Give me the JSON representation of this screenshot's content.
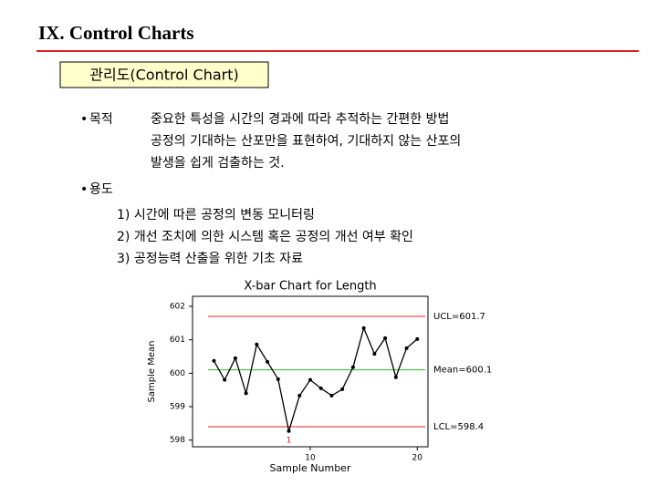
{
  "header": {
    "title": "IX. Control Charts"
  },
  "box_heading": "관리도(Control Chart)",
  "purpose": {
    "label": "목적",
    "lines": [
      "중요한 특성을 시간의 경과에 따라 추적하는 간편한 방법",
      "공정의 기대하는 산포만을 표현하여, 기대하지 않는 산포의",
      "발생을 쉽게 검출하는 것."
    ]
  },
  "usage": {
    "label": "용도",
    "items": [
      "1) 시간에 따른 공정의 변동 모니터링",
      "2) 개선 조치에 의한 시스템 혹은 공정의 개선 여부 확인",
      "3) 공정능력 산출을 위한 기초 자료"
    ]
  },
  "chart_data": {
    "type": "line",
    "title": "X-bar Chart for Length",
    "xlabel": "Sample Number",
    "ylabel": "Sample Mean",
    "x": [
      1,
      2,
      3,
      4,
      5,
      6,
      7,
      8,
      9,
      10,
      11,
      12,
      13,
      14,
      15,
      16,
      17,
      18,
      19,
      20
    ],
    "values": [
      600.37,
      599.8,
      600.45,
      599.4,
      600.86,
      600.34,
      599.82,
      598.27,
      599.33,
      599.8,
      599.55,
      599.33,
      599.52,
      600.18,
      601.35,
      600.58,
      601.05,
      599.88,
      600.75,
      601.02
    ],
    "color": "#000000",
    "xlim": [
      -1,
      21
    ],
    "ylim": [
      597.8,
      602.3
    ],
    "xticks": [
      10,
      20
    ],
    "yticks": [
      598,
      599,
      600,
      601,
      602
    ],
    "control_lines": [
      {
        "value": 601.7,
        "label": "UCL=601.7",
        "color": "#e02020"
      },
      {
        "value": 600.1,
        "label": "Mean=600.1",
        "color": "#20c020"
      },
      {
        "value": 598.4,
        "label": "LCL=598.4",
        "color": "#e02020"
      }
    ],
    "out_of_control_label": {
      "text": "1",
      "color": "#e02020"
    }
  }
}
